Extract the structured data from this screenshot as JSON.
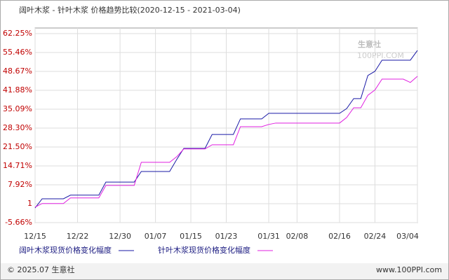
{
  "chart_data": {
    "type": "line",
    "title": "阔叶木浆 - 针叶木浆 价格趋势比较(2020-12-15 - 2021-03-04)",
    "watermark": "生意社",
    "watermark_url": "100PPI.COM",
    "footer_left": "© 2025.07 生意社",
    "footer_right": "www.100PPI.com",
    "categories": [
      "12/15",
      null,
      null,
      null,
      null,
      null,
      "12/22",
      null,
      null,
      null,
      null,
      null,
      "12/30",
      null,
      null,
      null,
      null,
      "01/07",
      null,
      null,
      null,
      null,
      "01/15",
      null,
      null,
      null,
      null,
      "01/23",
      null,
      null,
      null,
      null,
      null,
      "01/31",
      null,
      null,
      null,
      "02/08",
      null,
      null,
      null,
      null,
      null,
      "02/16",
      null,
      null,
      null,
      null,
      "02/24",
      null,
      null,
      null,
      null,
      null,
      "03/04"
    ],
    "series": [
      {
        "name": "阔叶木浆现货价格变化幅度",
        "color": "#1a1aa6",
        "values": [
          -0.4,
          2.9,
          2.9,
          2.9,
          2.9,
          4.2,
          4.2,
          4.2,
          4.2,
          4.2,
          8.9,
          8.9,
          8.9,
          8.9,
          8.9,
          12.7,
          12.7,
          12.7,
          12.7,
          12.7,
          17,
          21.0,
          21.0,
          21.0,
          21.0,
          26.0,
          26.0,
          26.0,
          26.0,
          31.6,
          31.6,
          31.6,
          31.6,
          33.6,
          33.6,
          33.6,
          33.6,
          33.6,
          33.6,
          33.6,
          33.6,
          33.6,
          33.6,
          33.6,
          35.3,
          38.9,
          38.9,
          47.2,
          48.7,
          52.7,
          52.7,
          52.7,
          52.7,
          52.7,
          56.2
        ]
      },
      {
        "name": "针叶木浆现货价格变化幅度",
        "color": "#e020e0",
        "values": [
          -0.1,
          1.2,
          1.2,
          1.2,
          1.2,
          3.2,
          3.2,
          3.2,
          3.2,
          3.2,
          7.7,
          7.7,
          7.7,
          7.7,
          7.7,
          16.0,
          16.0,
          16.0,
          16.0,
          16.0,
          18,
          20.8,
          20.8,
          20.8,
          20.8,
          22.3,
          22.3,
          22.3,
          22.3,
          28.8,
          28.8,
          28.8,
          28.8,
          29.6,
          30.1,
          30.1,
          30.1,
          30.1,
          30.1,
          30.1,
          30.1,
          30.1,
          30.1,
          30.1,
          32.1,
          35.6,
          35.6,
          40.1,
          42,
          45.9,
          45.9,
          45.9,
          45.9,
          44.7,
          46.9
        ]
      }
    ],
    "ylim": [
      -5.66,
      64.26
    ],
    "yticks": [
      {
        "value": 62.25,
        "label": "62.25%"
      },
      {
        "value": 55.46,
        "label": "55.46%"
      },
      {
        "value": 48.67,
        "label": "48.67%"
      },
      {
        "value": 41.88,
        "label": "41.88%"
      },
      {
        "value": 35.09,
        "label": "35.09%"
      },
      {
        "value": 28.3,
        "label": "28.30%"
      },
      {
        "value": 21.5,
        "label": "21.50%"
      },
      {
        "value": 14.71,
        "label": "14.71%"
      },
      {
        "value": 7.92,
        "label": "7.92%"
      },
      {
        "value": 1.13,
        "label": "1"
      },
      {
        "value": -5.66,
        "label": "-5.66%"
      }
    ],
    "grid": true
  }
}
